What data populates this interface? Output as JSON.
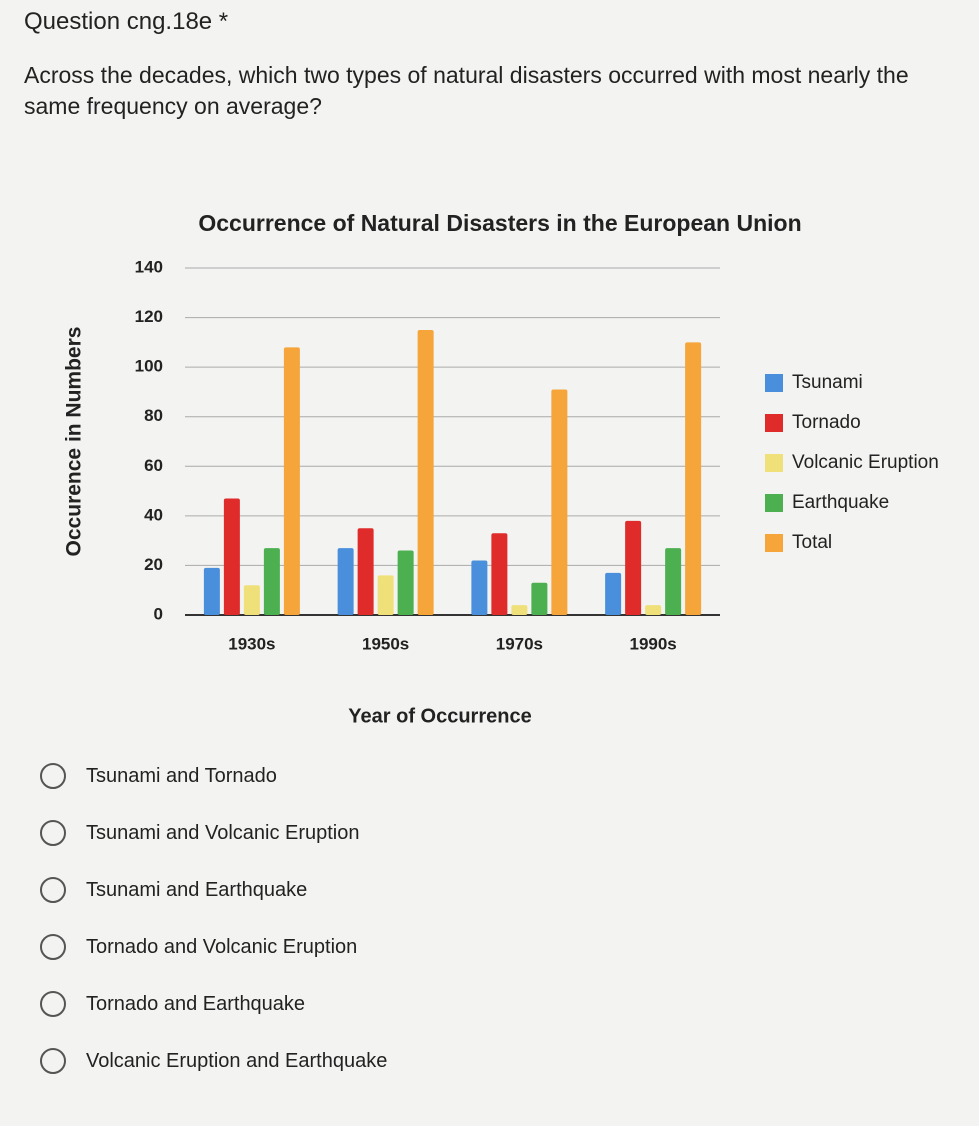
{
  "question": {
    "title": "Question cng.18e *",
    "text": "Across the decades, which two types of natural disasters occurred with most nearly the same frequency on average?"
  },
  "chart_data": {
    "type": "bar",
    "title": "Occurrence of Natural Disasters in the European Union",
    "x_label": "Year of Occurrence",
    "y_label": "Occurence in Numbers",
    "categories": [
      "1930s",
      "1950s",
      "1970s",
      "1990s"
    ],
    "series": [
      {
        "name": "Tsunami",
        "color": "#4a8fdb",
        "values": [
          19,
          27,
          22,
          17
        ]
      },
      {
        "name": "Tornado",
        "color": "#e02b2b",
        "values": [
          47,
          35,
          33,
          38
        ]
      },
      {
        "name": "Volcanic Eruption",
        "color": "#f0e07a",
        "values": [
          12,
          16,
          4,
          4
        ]
      },
      {
        "name": "Earthquake",
        "color": "#4caf50",
        "values": [
          27,
          26,
          13,
          27
        ]
      },
      {
        "name": "Total",
        "color": "#f5a53a",
        "values": [
          108,
          115,
          91,
          110
        ]
      }
    ],
    "ylim": [
      0,
      140
    ],
    "yticks": [
      0,
      20,
      40,
      60,
      80,
      100,
      120,
      140
    ],
    "grid": true,
    "legend": "right"
  },
  "options": [
    "Tsunami and Tornado",
    "Tsunami and Volcanic Eruption",
    "Tsunami and Earthquake",
    "Tornado and Volcanic Eruption",
    "Tornado and Earthquake",
    "Volcanic Eruption and Earthquake"
  ]
}
